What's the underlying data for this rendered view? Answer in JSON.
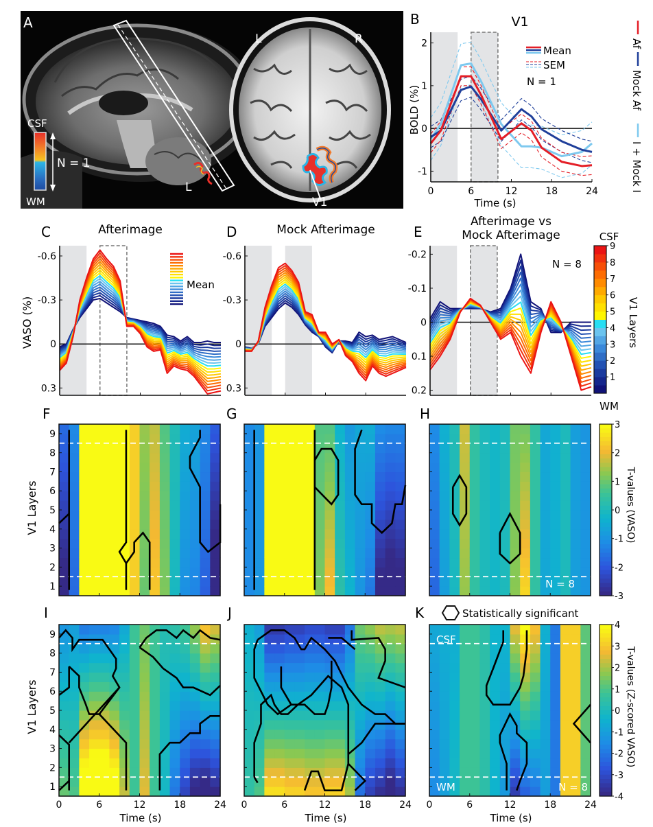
{
  "panel_letters": {
    "A": "A",
    "B": "B",
    "C": "C",
    "D": "D",
    "E": "E",
    "F": "F",
    "G": "G",
    "H": "H",
    "I": "I",
    "J": "J",
    "K": "K"
  },
  "panel_a": {
    "sagittal_orient": "L",
    "axial_left": "L",
    "axial_right": "R",
    "roi_label": "V1",
    "colorbar_top": "CSF",
    "colorbar_bottom": "WM",
    "n_label": "N = 1",
    "colorbar_colors": [
      "#e8302a",
      "#f27a2a",
      "#f6c321",
      "#2bb5e6",
      "#2a6fc2",
      "#1e4aa0"
    ]
  },
  "chart_data": [
    {
      "id": "B",
      "type": "line",
      "title": "V1",
      "xlabel": "Time (s)",
      "ylabel": "BOLD (%)",
      "xlim": [
        0,
        24
      ],
      "ylim": [
        -1.25,
        2.25
      ],
      "xticks": [
        "0",
        "6",
        "12",
        "18",
        "24"
      ],
      "yticks": [
        "-1",
        "0",
        "1",
        "2"
      ],
      "shaded_intervals_s": [
        [
          0,
          4
        ]
      ],
      "shaded_dashed_intervals_s": [
        [
          6,
          10
        ]
      ],
      "x": [
        0,
        1.5,
        4.5,
        6,
        7.5,
        10.5,
        13.5,
        15,
        16.5,
        19.5,
        22.5,
        24
      ],
      "series": [
        {
          "name": "Af",
          "color": "#e41e26",
          "mean": [
            -0.35,
            -0.05,
            1.22,
            1.22,
            0.78,
            -0.25,
            0.12,
            -0.05,
            -0.45,
            -0.78,
            -0.88,
            -0.86
          ],
          "sem": 0.22
        },
        {
          "name": "Mock Af",
          "color": "#1f3f9a",
          "mean": [
            -0.2,
            -0.05,
            0.9,
            0.98,
            0.68,
            -0.05,
            0.45,
            0.28,
            -0.02,
            -0.3,
            -0.5,
            -0.55
          ],
          "sem": 0.25
        },
        {
          "name": "I + Mock I",
          "color": "#7ec9ef",
          "mean": [
            -0.25,
            0.1,
            1.48,
            1.52,
            1.1,
            0.1,
            -0.42,
            -0.42,
            -0.45,
            -0.65,
            -0.55,
            -0.35
          ],
          "sem": 0.5
        }
      ],
      "legend": {
        "mean_label": "Mean",
        "sem_label": "SEM",
        "n_label": "N = 1",
        "position": "top-right"
      },
      "side_legend": [
        "Af",
        "Mock Af",
        "I + Mock I"
      ]
    },
    {
      "id": "C",
      "type": "line",
      "title": "Afterimage",
      "ylabel": "VASO (%)",
      "xlim": [
        0,
        24
      ],
      "ylim": [
        0.35,
        -0.67
      ],
      "yticks": [
        "-0.6",
        "-0.3",
        "0",
        "0.3"
      ],
      "shaded_intervals_s": [
        [
          0,
          4
        ]
      ],
      "dashed_box_s": [
        6,
        10
      ],
      "x": [
        0,
        1,
        2,
        3,
        4,
        5,
        6,
        7,
        8,
        9,
        10,
        11,
        12,
        13,
        14,
        15,
        16,
        17,
        18,
        19,
        20,
        21,
        22,
        23,
        24
      ],
      "layers": 18,
      "deep_wm": [
        0.02,
        0.0,
        -0.1,
        -0.18,
        -0.24,
        -0.3,
        -0.31,
        -0.28,
        -0.25,
        -0.22,
        -0.18,
        -0.17,
        -0.16,
        -0.15,
        -0.14,
        -0.12,
        -0.06,
        -0.05,
        -0.02,
        -0.05,
        -0.01,
        -0.01,
        -0.02,
        -0.01,
        -0.01
      ],
      "superficial_csf": [
        0.18,
        0.13,
        -0.05,
        -0.3,
        -0.45,
        -0.58,
        -0.64,
        -0.58,
        -0.53,
        -0.43,
        -0.12,
        -0.12,
        -0.07,
        0.02,
        0.05,
        0.04,
        0.2,
        0.15,
        0.17,
        0.18,
        0.22,
        0.28,
        0.34,
        0.33,
        0.32
      ],
      "legend_label": "Mean",
      "legend_position": "top-right"
    },
    {
      "id": "D",
      "type": "line",
      "title": "Mock Afterimage",
      "xlim": [
        0,
        24
      ],
      "ylim": [
        0.35,
        -0.67
      ],
      "yticks": [
        "-0.6",
        "-0.3",
        "0",
        "0.3"
      ],
      "shaded_intervals_s": [
        [
          0,
          4
        ],
        [
          6,
          10
        ]
      ],
      "x": [
        0,
        1,
        2,
        3,
        4,
        5,
        6,
        7,
        8,
        9,
        10,
        11,
        12,
        13,
        14,
        15,
        16,
        17,
        18,
        19,
        20,
        21,
        22,
        23,
        24
      ],
      "layers": 18,
      "deep_wm": [
        0.02,
        0.03,
        0.0,
        -0.12,
        -0.18,
        -0.24,
        -0.28,
        -0.25,
        -0.2,
        -0.13,
        -0.08,
        -0.05,
        0.02,
        0.06,
        -0.02,
        -0.02,
        -0.01,
        -0.08,
        -0.05,
        -0.06,
        -0.03,
        -0.04,
        -0.05,
        -0.03,
        -0.01
      ],
      "superficial_csf": [
        0.05,
        0.05,
        -0.02,
        -0.25,
        -0.4,
        -0.52,
        -0.55,
        -0.5,
        -0.42,
        -0.22,
        -0.2,
        -0.08,
        -0.08,
        0.0,
        -0.03,
        0.08,
        0.12,
        0.2,
        0.25,
        0.15,
        0.2,
        0.22,
        0.2,
        0.18,
        0.16
      ],
      "legend_position": "none"
    },
    {
      "id": "E",
      "type": "line",
      "title": "Afterimage vs",
      "title_line2": "Mock Afterimage",
      "xlim": [
        0,
        24
      ],
      "ylim": [
        0.215,
        -0.225
      ],
      "yticks": [
        "-0.2",
        "-0.1",
        "0",
        "0.1",
        "0.2"
      ],
      "shaded_intervals_s": [
        [
          0,
          4
        ]
      ],
      "dashed_box_s": [
        6,
        10
      ],
      "x": [
        0,
        1.5,
        3,
        4.5,
        6,
        7.5,
        9,
        10.5,
        12,
        13.5,
        15,
        16.5,
        18,
        19.5,
        21,
        22.5,
        24
      ],
      "layers": 18,
      "deep_wm": [
        -0.01,
        -0.06,
        -0.04,
        -0.04,
        -0.04,
        -0.04,
        -0.03,
        -0.04,
        -0.1,
        -0.2,
        -0.06,
        -0.04,
        0.03,
        0.03,
        0.0,
        0.0,
        0.0
      ],
      "superficial_csf": [
        0.14,
        0.1,
        0.05,
        -0.03,
        -0.07,
        -0.05,
        0.0,
        0.05,
        0.03,
        0.1,
        0.15,
        0.03,
        -0.06,
        0.0,
        0.1,
        0.2,
        0.19
      ],
      "n_label": "N = 8",
      "colorbar": {
        "top": "CSF",
        "bottom": "WM",
        "label": "V1 Layers",
        "ticks": [
          "1",
          "2",
          "3",
          "4",
          "5",
          "6",
          "7",
          "8",
          "9"
        ]
      }
    },
    {
      "id": "F",
      "type": "heatmap",
      "xlim": [
        0,
        24
      ],
      "ylim": [
        0.5,
        9.5
      ],
      "ylabel": "V1 Layers",
      "yticks": [
        "1",
        "2",
        "3",
        "4",
        "5",
        "6",
        "7",
        "8",
        "9"
      ],
      "clim": [
        -3,
        3
      ],
      "columns_time": 16,
      "rows_layers": 18,
      "column_profile": [
        -2.5,
        -1.5,
        3,
        3,
        3,
        3,
        3,
        2.4,
        1.2,
        2.0,
        1.0,
        0.0,
        -0.8,
        -1.0,
        -1.6,
        -2.8
      ],
      "depth_gradient": [
        1.5,
        0.5,
        0,
        0,
        0,
        0,
        0,
        0,
        0.4,
        -0.6,
        -0.4,
        0.2,
        0.6,
        0.6,
        0.6,
        1.6
      ],
      "csf_line_layer": 8.5,
      "wm_line_layer": 1.5
    },
    {
      "id": "G",
      "type": "heatmap",
      "xlim": [
        0,
        24
      ],
      "ylim": [
        0.5,
        9.5
      ],
      "clim": [
        -3,
        3
      ],
      "columns_time": 16,
      "rows_layers": 18,
      "column_profile": [
        -1.2,
        -1.0,
        3,
        3,
        3,
        3,
        3,
        1.0,
        1.5,
        0.0,
        -0.6,
        -0.8,
        -1.0,
        -2.2,
        -2.4,
        -2.3
      ],
      "depth_gradient": [
        0,
        0,
        0,
        0,
        0,
        0,
        0,
        -0.4,
        -1.4,
        -0.6,
        -0.6,
        0.4,
        1.0,
        2.0,
        2.2,
        2.0
      ],
      "csf_line_layer": 8.5,
      "wm_line_layer": 1.5
    },
    {
      "id": "H",
      "type": "heatmap",
      "xlim": [
        0,
        24
      ],
      "ylim": [
        0.5,
        9.5
      ],
      "clim": [
        -3,
        3
      ],
      "colorbar_label": "T-values (VASO)",
      "colorbar_ticks": [
        "3",
        "2",
        "1",
        "0",
        "-1",
        "-2",
        "-3"
      ],
      "columns_time": 16,
      "rows_layers": 18,
      "column_profile": [
        -1.5,
        -0.6,
        0.0,
        1.6,
        0.4,
        0.0,
        -0.2,
        0.0,
        1.2,
        1.8,
        0.4,
        -0.6,
        -0.4,
        0.0,
        -0.8,
        -1.0
      ],
      "depth_gradient": [
        0.6,
        0.4,
        0.2,
        0.4,
        0,
        0,
        0,
        0,
        -0.2,
        -1.4,
        0,
        0,
        0,
        0,
        0,
        0
      ],
      "csf_line_layer": 8.5,
      "wm_line_layer": 1.5,
      "n_label": "N = 8"
    },
    {
      "id": "I",
      "type": "heatmap",
      "xlim": [
        0,
        24
      ],
      "ylim": [
        0.5,
        9.5
      ],
      "xlabel": "Time (s)",
      "xticks": [
        "0",
        "6",
        "12",
        "18",
        "24"
      ],
      "ylabel": "V1 Layers",
      "yticks": [
        "1",
        "2",
        "3",
        "4",
        "5",
        "6",
        "7",
        "8",
        "9"
      ],
      "clim": [
        -4,
        4
      ],
      "columns_time": 16,
      "rows_layers": 18,
      "column_profile": [
        0,
        0,
        0.8,
        1.0,
        1.0,
        0.8,
        0.4,
        0.4,
        1.0,
        0.4,
        0,
        -0.4,
        -0.6,
        -0.6,
        -0.4,
        -0.4
      ],
      "depth_gradient": [
        -2.6,
        -2.0,
        -7.0,
        -7.5,
        -7.5,
        -6.5,
        -3.0,
        0.0,
        -1.2,
        0.0,
        0.4,
        2.4,
        4.0,
        6.0,
        7.5,
        6.5
      ],
      "csf_line_layer": 8.5,
      "wm_line_layer": 1.5
    },
    {
      "id": "J",
      "type": "heatmap",
      "xlim": [
        0,
        24
      ],
      "ylim": [
        0.5,
        9.5
      ],
      "xlabel": "Time (s)",
      "xticks": [
        "0",
        "6",
        "12",
        "18",
        "24"
      ],
      "clim": [
        -4,
        4
      ],
      "columns_time": 16,
      "rows_layers": 18,
      "column_profile": [
        0,
        0,
        0,
        0,
        0,
        0,
        0,
        0,
        0,
        0,
        0,
        -0.2,
        -0.4,
        -0.4,
        -0.6,
        -0.4
      ],
      "depth_gradient": [
        -1.0,
        -2.0,
        -7.0,
        -7.0,
        -6.5,
        -6.5,
        -6.0,
        -6.0,
        -6.5,
        -6.5,
        -4.0,
        3.5,
        5.0,
        6.0,
        6.5,
        6.0
      ],
      "csf_line_layer": 8.5,
      "wm_line_layer": 1.5
    },
    {
      "id": "K",
      "type": "heatmap",
      "xlim": [
        0,
        24
      ],
      "ylim": [
        0.5,
        9.5
      ],
      "xlabel": "Time (s)",
      "xticks": [
        "0",
        "6",
        "12",
        "18",
        "24"
      ],
      "clim": [
        -4,
        4
      ],
      "colorbar_label": "T-values (Z-scored VASO)",
      "colorbar_ticks": [
        "4",
        "3",
        "2",
        "1",
        "0",
        "-1",
        "-2",
        "-3",
        "-4"
      ],
      "columns_time": 16,
      "rows_layers": 18,
      "column_profile": [
        -0.6,
        -0.4,
        -0.2,
        0.4,
        0.4,
        0.2,
        -0.2,
        -0.4,
        -0.2,
        0.4,
        0.2,
        -0.4,
        -1.0,
        1.6,
        1.6,
        0.6
      ],
      "depth_gradient": [
        0.8,
        0.4,
        -0.4,
        0,
        0,
        0,
        0,
        0.8,
        6.0,
        6.5,
        5.0,
        0.5,
        0,
        0,
        0,
        0
      ],
      "csf_line_layer": 8.5,
      "wm_line_layer": 1.5,
      "csf_label": "CSF",
      "wm_label": "WM",
      "n_label": "N = 8",
      "legend_label": "Statistically significant"
    }
  ]
}
